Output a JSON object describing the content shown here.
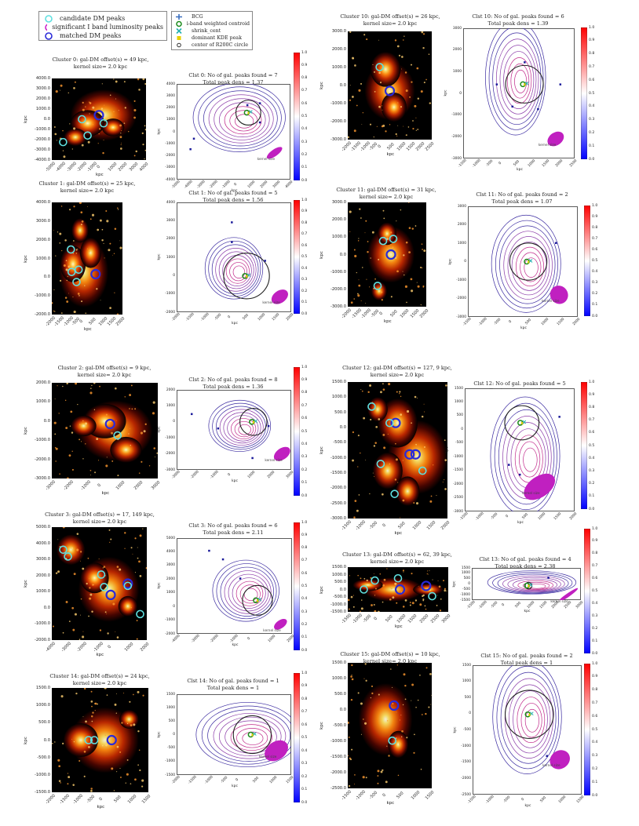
{
  "legend_left": [
    {
      "marker": "cyan-circle",
      "label": "candidate DM peaks",
      "color": "#5fe0e0"
    },
    {
      "marker": "magenta-circle",
      "label": "significant I band luminosity peaks",
      "color": "#cc22cc"
    },
    {
      "marker": "blue-circle",
      "label": "matched DM peaks",
      "color": "#2a2ad8"
    }
  ],
  "legend_right": [
    {
      "marker": "plus",
      "label": "BCG",
      "color": "#3a6fbf"
    },
    {
      "marker": "green-circle",
      "label": "i-band weighted centroid",
      "color": "#1a8a1a"
    },
    {
      "marker": "cyan-x",
      "label": "shrink_cent",
      "color": "#22b0b0"
    },
    {
      "marker": "yellow-square",
      "label": "dominant KDE peak",
      "color": "#e8d000"
    },
    {
      "marker": "dark-circle",
      "label": "center of R200C circle",
      "color": "#333333"
    }
  ],
  "colorbar_ticks": [
    "1.0",
    "0.9",
    "0.8",
    "0.7",
    "0.6",
    "0.5",
    "0.4",
    "0.3",
    "0.2",
    "0.1",
    "0.0"
  ],
  "kernel_label": "kernel size",
  "xlabel": "kpc",
  "ylabel": "kpc",
  "clusters": [
    {
      "id": "c0",
      "dm_title": "Cluster 0: gal-DM offset(s) = 49 kpc,",
      "dm_sub": "kernel size= 2.0 kpc",
      "kde_title": "Clst 0: No of gal. peaks found = 7",
      "kde_sub": "Total peak dens = 1.37",
      "dm_y": [
        "4000.0",
        "3000.0",
        "2000.0",
        "1000.0",
        "0.0",
        "-1000.0",
        "-2000.0",
        "-3000.0",
        "-4000.0"
      ],
      "dm_x": [
        "-5000",
        "-4000",
        "-3000",
        "-2000",
        "-1000",
        "0",
        "1000",
        "2000",
        "3000",
        "4000"
      ],
      "kde_y": [
        "4000",
        "3000",
        "2000",
        "1000",
        "0",
        "-1000",
        "-2000",
        "-3000",
        "-4000"
      ],
      "kde_x": [
        "-5000",
        "-4000",
        "-3000",
        "-2000",
        "-1000",
        "0",
        "1000",
        "2000",
        "3000",
        "4000"
      ]
    },
    {
      "id": "c10",
      "dm_title": "Cluster 10: gal-DM offset(s) = 26 kpc,",
      "dm_sub": "kernel size= 2.0 kpc",
      "kde_title": "Clst 10: No of gal. peaks found = 6",
      "kde_sub": "Total peak dens = 1.39",
      "dm_y": [
        "3000.0",
        "2000.0",
        "1000.0",
        "0.0",
        "-1000.0",
        "-2000.0",
        "-3000.0"
      ],
      "dm_x": [
        "-2000",
        "-1500",
        "-1000",
        "-500",
        "0",
        "500",
        "1000",
        "1500",
        "2000",
        "2500"
      ],
      "kde_y": [
        "3000",
        "2000",
        "1000",
        "0",
        "-1000",
        "-2000",
        "-3000"
      ],
      "kde_x": [
        "-1500",
        "-1000",
        "-500",
        "0",
        "500",
        "1000",
        "1500",
        "2000",
        "2500"
      ]
    },
    {
      "id": "c1",
      "dm_title": "Cluster 1: gal-DM offset(s) = 25 kpc,",
      "dm_sub": "kernel size= 2.0 kpc",
      "kde_title": "Clst 1: No of gal. peaks found = 5",
      "kde_sub": "Total peak dens = 1.56",
      "dm_y": [
        "4000.0",
        "3000.0",
        "2000.0",
        "1000.0",
        "0.0",
        "-1000.0",
        "-2000.0"
      ],
      "dm_x": [
        "-2000",
        "-1500",
        "-1000",
        "-500",
        "0",
        "500",
        "1000",
        "1500",
        "2000"
      ],
      "kde_y": [
        "4000",
        "3000",
        "2000",
        "1000",
        "0",
        "-1000",
        "-2000"
      ],
      "kde_x": [
        "-2000",
        "-1500",
        "-1000",
        "-500",
        "0",
        "500",
        "1000",
        "1500",
        "2000"
      ]
    },
    {
      "id": "c11",
      "dm_title": "Cluster 11: gal-DM offset(s) = 31 kpc,",
      "dm_sub": "kernel size= 2.0 kpc",
      "kde_title": "Clst 11: No of gal. peaks found = 2",
      "kde_sub": "Total peak dens = 1.07",
      "dm_y": [
        "3000.0",
        "2000.0",
        "1000.0",
        "0.0",
        "-1000.0",
        "-2000.0",
        "-3000.0"
      ],
      "dm_x": [
        "-2000",
        "-1500",
        "-1000",
        "-500",
        "0",
        "500",
        "1000",
        "1500",
        "2000"
      ],
      "kde_y": [
        "3000",
        "2000",
        "1000",
        "0",
        "-1000",
        "-2000",
        "-3000"
      ],
      "kde_x": [
        "-1500",
        "-1000",
        "-500",
        "0",
        "500",
        "1000",
        "1500",
        "2000"
      ]
    },
    {
      "id": "c2",
      "dm_title": "Cluster 2: gal-DM offset(s) = 9 kpc,",
      "dm_sub": "kernel size= 2.0 kpc",
      "kde_title": "Clst 2: No of gal. peaks found = 8",
      "kde_sub": "Total peak dens = 1.36",
      "dm_y": [
        "2000.0",
        "1000.0",
        "0.0",
        "-1000.0",
        "-2000.0",
        "-3000.0"
      ],
      "dm_x": [
        "-3000",
        "-2000",
        "-1000",
        "0",
        "1000",
        "2000",
        "3000"
      ],
      "kde_y": [
        "2000",
        "1000",
        "0",
        "-1000",
        "-2000",
        "-3000"
      ],
      "kde_x": [
        "-3000",
        "-2000",
        "-1000",
        "0",
        "1000",
        "2000",
        "3000"
      ]
    },
    {
      "id": "c12",
      "dm_title": "Cluster 12: gal-DM offset(s) = 127, 9 kpc,",
      "dm_sub": "kernel size= 2.0 kpc",
      "kde_title": "Clst 12: No of gal. peaks found = 5",
      "kde_sub": "Total peak dens = 2.36",
      "dm_y": [
        "1500.0",
        "1000.0",
        "500.0",
        "0.0",
        "-500.0",
        "-1000.0",
        "-1500.0",
        "-2000.0",
        "-2500.0",
        "-3000.0"
      ],
      "dm_x": [
        "-1500",
        "-1000",
        "-500",
        "0",
        "500",
        "1000",
        "1500",
        "2000"
      ],
      "kde_y": [
        "1500",
        "1000",
        "500",
        "0",
        "-500",
        "-1000",
        "-1500",
        "-2000",
        "-2500",
        "-3000"
      ],
      "kde_x": [
        "-1500",
        "-1000",
        "-500",
        "0",
        "500",
        "1000",
        "1500",
        "2000"
      ]
    },
    {
      "id": "c3",
      "dm_title": "Cluster 3: gal-DM offset(s) = 17, 149 kpc,",
      "dm_sub": "kernel size= 2.0 kpc",
      "kde_title": "Clst 3: No of gal. peaks found = 6",
      "kde_sub": "Total peak dens = 2.11",
      "dm_y": [
        "5000.0",
        "4000.0",
        "3000.0",
        "2000.0",
        "1000.0",
        "0.0",
        "-1000.0",
        "-2000.0"
      ],
      "dm_x": [
        "-4000",
        "-3000",
        "-2000",
        "-1000",
        "0",
        "1000",
        "2000"
      ],
      "kde_y": [
        "5000",
        "4000",
        "3000",
        "2000",
        "1000",
        "0",
        "-1000",
        "-2000"
      ],
      "kde_x": [
        "-4000",
        "-3000",
        "-2000",
        "-1000",
        "0",
        "1000",
        "2000"
      ]
    },
    {
      "id": "c13",
      "dm_title": "Cluster 13: gal-DM offset(s) = 62, 39 kpc,",
      "dm_sub": "kernel size= 2.0 kpc",
      "kde_title": "Clst 13: No of gal. peaks found = 4",
      "kde_sub": "Total peak dens = 2.38",
      "dm_y": [
        "1500.0",
        "1000.0",
        "500.0",
        "0.0",
        "-500.0",
        "-1000.0",
        "-1500.0"
      ],
      "dm_x": [
        "-1500",
        "-1000",
        "-500",
        "0",
        "500",
        "1000",
        "1500",
        "2000",
        "2500",
        "3000"
      ],
      "kde_y": [
        "1500",
        "1000",
        "500",
        "0",
        "-500",
        "-1000",
        "-1500"
      ],
      "kde_x": [
        "-1500",
        "-1000",
        "-500",
        "0",
        "500",
        "1000",
        "1500",
        "2000",
        "2500",
        "3000"
      ]
    },
    {
      "id": "c14",
      "dm_title": "Cluster 14: gal-DM offset(s) = 24 kpc,",
      "dm_sub": "kernel size= 2.0 kpc",
      "kde_title": "Clst 14: No of gal. peaks found = 1",
      "kde_sub": "Total peak dens = 1",
      "dm_y": [
        "1500.0",
        "1000.0",
        "500.0",
        "0.0",
        "-500.0",
        "-1000.0",
        "-1500.0"
      ],
      "dm_x": [
        "-2000",
        "-1500",
        "-1000",
        "-500",
        "0",
        "500",
        "1000",
        "1500"
      ],
      "kde_y": [
        "1500",
        "1000",
        "500",
        "0",
        "-500",
        "-1000",
        "-1500"
      ],
      "kde_x": [
        "-2000",
        "-1500",
        "-1000",
        "-500",
        "0",
        "500",
        "1000",
        "1500"
      ]
    },
    {
      "id": "c15",
      "dm_title": "Cluster 15: gal-DM offset(s) = 10 kpc,",
      "dm_sub": "kernel size= 2.0 kpc",
      "kde_title": "Clst 15: No of gal. peaks found = 2",
      "kde_sub": "Total peak dens = 1",
      "dm_y": [
        "1500.0",
        "1000.0",
        "500.0",
        "0.0",
        "-500.0",
        "-1000.0",
        "-1500.0",
        "-2000.0",
        "-2500.0"
      ],
      "dm_x": [
        "-1500",
        "-1000",
        "-500",
        "0",
        "500",
        "1000",
        "1500"
      ],
      "kde_y": [
        "1500",
        "1000",
        "500",
        "0",
        "-500",
        "-1000",
        "-1500",
        "-2000",
        "-2500"
      ],
      "kde_x": [
        "-1500",
        "-1000",
        "-500",
        "0",
        "500",
        "1000",
        "1500"
      ]
    }
  ]
}
